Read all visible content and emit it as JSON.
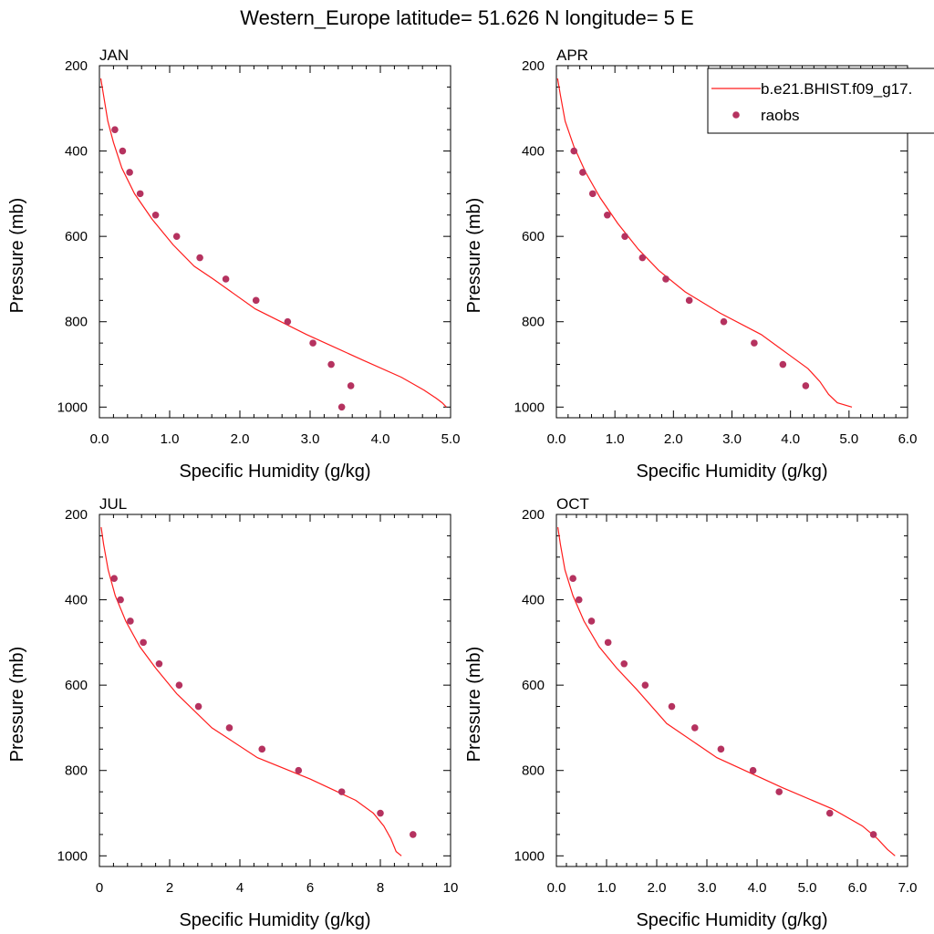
{
  "figure_title": "Western_Europe  latitude= 51.626 N longitude= 5 E",
  "colors": {
    "model": "#ff1c1c",
    "obs": "#b5325f",
    "axis": "#000000",
    "background": "#ffffff"
  },
  "legend": {
    "position": "top-right",
    "model_label": "b.e21.BHIST.f09_g17.",
    "obs_label": "raobs"
  },
  "chart_data": [
    {
      "type": "line",
      "title": "JAN",
      "xlabel": "Specific Humidity (g/kg)",
      "ylabel": "Pressure (mb)",
      "xlim": [
        0,
        5
      ],
      "ylim": [
        200,
        1025
      ],
      "y_inverted": true,
      "xticks": [
        0,
        1,
        2,
        3,
        4,
        5
      ],
      "xtick_labels": [
        "0.0",
        "1.0",
        "2.0",
        "3.0",
        "4.0",
        "5.0"
      ],
      "yticks": [
        200,
        400,
        600,
        800,
        1000
      ],
      "ytick_labels": [
        "200",
        "400",
        "600",
        "800",
        "1000"
      ],
      "model": {
        "name": "b.e21.BHIST.f09_g17.",
        "x": [
          0.02,
          0.06,
          0.12,
          0.2,
          0.32,
          0.5,
          0.75,
          1.05,
          1.35,
          1.62,
          2.22,
          2.95,
          3.75,
          4.3,
          4.62,
          4.8,
          4.88,
          4.94
        ],
        "y": [
          230,
          270,
          330,
          380,
          440,
          500,
          560,
          620,
          670,
          700,
          770,
          830,
          890,
          930,
          960,
          980,
          990,
          1000
        ]
      },
      "obs": {
        "name": "raobs",
        "x": [
          0.22,
          0.33,
          0.43,
          0.58,
          0.8,
          1.1,
          1.43,
          1.8,
          2.23,
          2.68,
          3.04,
          3.3,
          3.58,
          3.45
        ],
        "y": [
          350,
          400,
          450,
          500,
          550,
          600,
          650,
          700,
          750,
          800,
          850,
          900,
          950,
          1000
        ]
      }
    },
    {
      "type": "line",
      "title": "APR",
      "xlabel": "Specific Humidity (g/kg)",
      "ylabel": "Pressure (mb)",
      "xlim": [
        0,
        6
      ],
      "ylim": [
        200,
        1025
      ],
      "y_inverted": true,
      "xticks": [
        0,
        1,
        2,
        3,
        4,
        5,
        6
      ],
      "xtick_labels": [
        "0.0",
        "1.0",
        "2.0",
        "3.0",
        "4.0",
        "5.0",
        "6.0"
      ],
      "yticks": [
        200,
        400,
        600,
        800,
        1000
      ],
      "ytick_labels": [
        "200",
        "400",
        "600",
        "800",
        "1000"
      ],
      "model": {
        "name": "b.e21.BHIST.f09_g17.",
        "x": [
          0.02,
          0.07,
          0.15,
          0.3,
          0.5,
          0.75,
          1.05,
          1.4,
          1.75,
          2.2,
          2.8,
          3.5,
          4.0,
          4.3,
          4.5,
          4.65,
          4.8,
          5.05
        ],
        "y": [
          230,
          270,
          330,
          390,
          450,
          510,
          570,
          630,
          680,
          730,
          780,
          830,
          880,
          910,
          940,
          970,
          990,
          1000
        ]
      },
      "obs": {
        "name": "raobs",
        "x": [
          0.3,
          0.45,
          0.62,
          0.87,
          1.17,
          1.47,
          1.87,
          2.27,
          2.86,
          3.38,
          3.87,
          4.26
        ],
        "y": [
          400,
          450,
          500,
          550,
          600,
          650,
          700,
          750,
          800,
          850,
          900,
          950
        ]
      }
    },
    {
      "type": "line",
      "title": "JUL",
      "xlabel": "Specific Humidity (g/kg)",
      "ylabel": "Pressure (mb)",
      "xlim": [
        0,
        10
      ],
      "ylim": [
        200,
        1025
      ],
      "y_inverted": true,
      "xticks": [
        0,
        2,
        4,
        6,
        8,
        10
      ],
      "xtick_labels": [
        "0",
        "2",
        "4",
        "6",
        "8",
        "10"
      ],
      "yticks": [
        200,
        400,
        600,
        800,
        1000
      ],
      "ytick_labels": [
        "200",
        "400",
        "600",
        "800",
        "1000"
      ],
      "model": {
        "name": "b.e21.BHIST.f09_g17.",
        "x": [
          0.05,
          0.12,
          0.25,
          0.45,
          0.75,
          1.15,
          1.6,
          2.2,
          3.2,
          4.5,
          6.0,
          7.3,
          7.8,
          8.1,
          8.3,
          8.45,
          8.6
        ],
        "y": [
          230,
          270,
          330,
          390,
          450,
          510,
          560,
          620,
          700,
          770,
          820,
          870,
          900,
          930,
          960,
          990,
          1000
        ]
      },
      "obs": {
        "name": "raobs",
        "x": [
          0.42,
          0.6,
          0.88,
          1.25,
          1.7,
          2.27,
          2.82,
          3.7,
          4.63,
          5.67,
          6.9,
          8.0,
          8.93
        ],
        "y": [
          350,
          400,
          450,
          500,
          550,
          600,
          650,
          700,
          750,
          800,
          850,
          900,
          950
        ]
      }
    },
    {
      "type": "line",
      "title": "OCT",
      "xlabel": "Specific Humidity (g/kg)",
      "ylabel": "Pressure (mb)",
      "xlim": [
        0,
        7
      ],
      "ylim": [
        200,
        1025
      ],
      "y_inverted": true,
      "xticks": [
        0,
        1,
        2,
        3,
        4,
        5,
        6,
        7
      ],
      "xtick_labels": [
        "0.0",
        "1.0",
        "2.0",
        "3.0",
        "4.0",
        "5.0",
        "6.0",
        "7.0"
      ],
      "yticks": [
        200,
        400,
        600,
        800,
        1000
      ],
      "ytick_labels": [
        "200",
        "400",
        "600",
        "800",
        "1000"
      ],
      "model": {
        "name": "b.e21.BHIST.f09_g17.",
        "x": [
          0.03,
          0.08,
          0.17,
          0.33,
          0.55,
          0.85,
          1.2,
          1.6,
          2.2,
          3.2,
          4.5,
          5.5,
          6.1,
          6.4,
          6.6,
          6.75
        ],
        "y": [
          230,
          270,
          330,
          390,
          450,
          510,
          560,
          610,
          690,
          770,
          840,
          890,
          930,
          960,
          985,
          1000
        ]
      },
      "obs": {
        "name": "raobs",
        "x": [
          0.33,
          0.45,
          0.7,
          1.03,
          1.35,
          1.77,
          2.3,
          2.76,
          3.28,
          3.92,
          4.44,
          5.45,
          6.32
        ],
        "y": [
          350,
          400,
          450,
          500,
          550,
          600,
          650,
          700,
          750,
          800,
          850,
          900,
          950
        ]
      }
    }
  ]
}
